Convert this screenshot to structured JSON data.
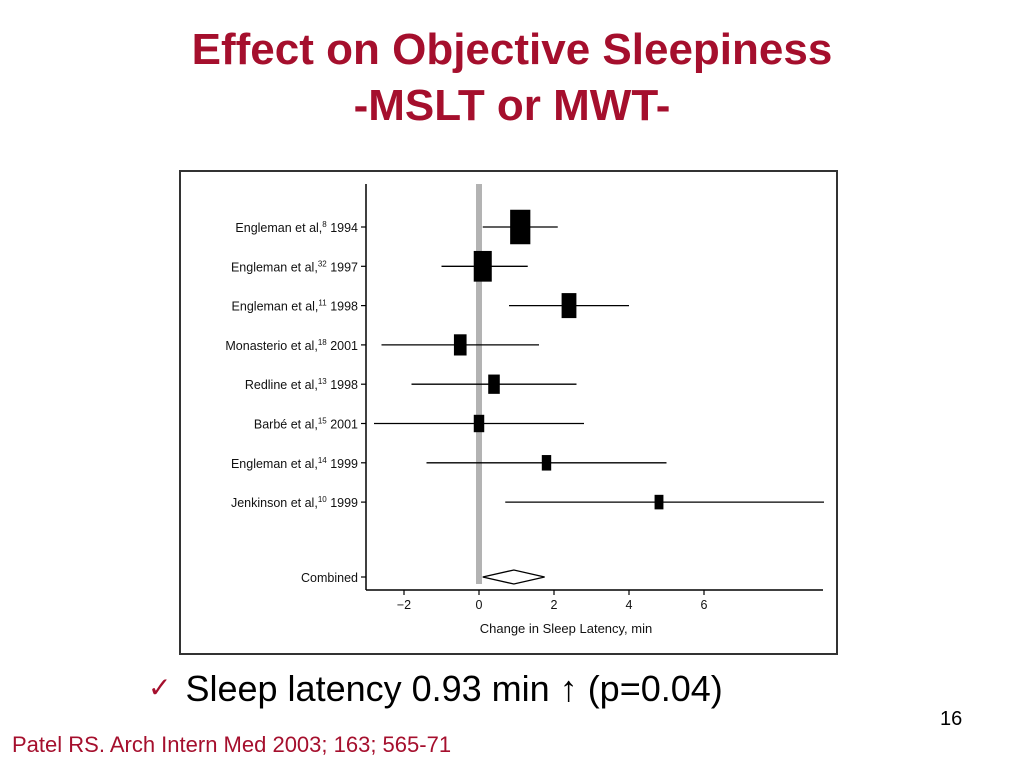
{
  "slide": {
    "title_line1": "Effect on Objective Sleepiness",
    "title_line2": "-MSLT or MWT-",
    "check_icon": "✓",
    "bullet_text": "Sleep latency 0.93 min ↑ (p=0.04)",
    "slide_number": "16",
    "citation": "Patel RS. Arch Intern Med 2003; 163; 565-71",
    "title_color": "#A50F2D"
  },
  "chart_data": {
    "type": "forest",
    "xlabel": "Change in Sleep Latency, min",
    "xticks": [
      -2,
      0,
      2,
      4,
      6
    ],
    "xlim": [
      -2.8,
      9.2
    ],
    "studies": [
      {
        "author": "Engleman et al,",
        "ref": "8",
        "year": "1994",
        "estimate": 1.1,
        "lower": 0.1,
        "upper": 2.1,
        "weight": 3
      },
      {
        "author": "Engleman et al,",
        "ref": "32",
        "year": "1997",
        "estimate": 0.1,
        "lower": -1.0,
        "upper": 1.3,
        "weight": 2.6
      },
      {
        "author": "Engleman et al,",
        "ref": "11",
        "year": "1998",
        "estimate": 2.4,
        "lower": 0.8,
        "upper": 4.0,
        "weight": 2
      },
      {
        "author": "Monasterio et al,",
        "ref": "18",
        "year": "2001",
        "estimate": -0.5,
        "lower": -2.6,
        "upper": 1.6,
        "weight": 1.6
      },
      {
        "author": "Redline et al,",
        "ref": "13",
        "year": "1998",
        "estimate": 0.4,
        "lower": -1.8,
        "upper": 2.6,
        "weight": 1.4
      },
      {
        "author": "Barbé et al,",
        "ref": "15",
        "year": "2001",
        "estimate": 0.0,
        "lower": -2.8,
        "upper": 2.8,
        "weight": 1.2
      },
      {
        "author": "Engleman et al,",
        "ref": "14",
        "year": "1999",
        "estimate": 1.8,
        "lower": -1.4,
        "upper": 5.0,
        "weight": 1
      },
      {
        "author": "Jenkinson et al,",
        "ref": "10",
        "year": "1999",
        "estimate": 4.8,
        "lower": 0.7,
        "upper": 9.2,
        "weight": 0.9
      }
    ],
    "combined": {
      "label": "Combined",
      "estimate": 0.93,
      "lower": 0.1,
      "upper": 1.75
    },
    "reference_line": 0
  }
}
